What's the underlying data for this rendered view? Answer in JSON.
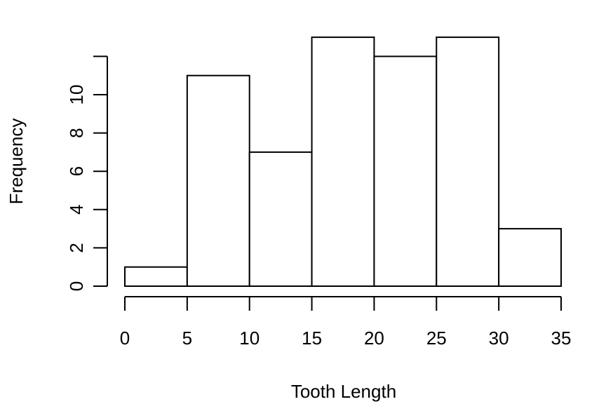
{
  "chart_data": {
    "type": "bar",
    "title": "",
    "xlabel": "Tooth Length",
    "ylabel": "Frequency",
    "bins": [
      {
        "start": 0,
        "end": 5,
        "value": 1
      },
      {
        "start": 5,
        "end": 10,
        "value": 11
      },
      {
        "start": 10,
        "end": 15,
        "value": 7
      },
      {
        "start": 15,
        "end": 20,
        "value": 13
      },
      {
        "start": 20,
        "end": 25,
        "value": 12
      },
      {
        "start": 25,
        "end": 30,
        "value": 13
      },
      {
        "start": 30,
        "end": 35,
        "value": 3
      }
    ],
    "xlim": [
      0,
      35
    ],
    "ylim": [
      0,
      13
    ],
    "x_ticks": [
      0,
      5,
      10,
      15,
      20,
      25,
      30,
      35
    ],
    "y_ticks": [
      0,
      2,
      4,
      6,
      8,
      10,
      12
    ],
    "y_tick_labels": [
      "0",
      "2",
      "4",
      "6",
      "8",
      "10",
      ""
    ],
    "grid": false,
    "legend": "none",
    "colors": {
      "bar_fill": "#ffffff",
      "bar_stroke": "#000000",
      "axis": "#000000",
      "background": "#ffffff"
    }
  }
}
